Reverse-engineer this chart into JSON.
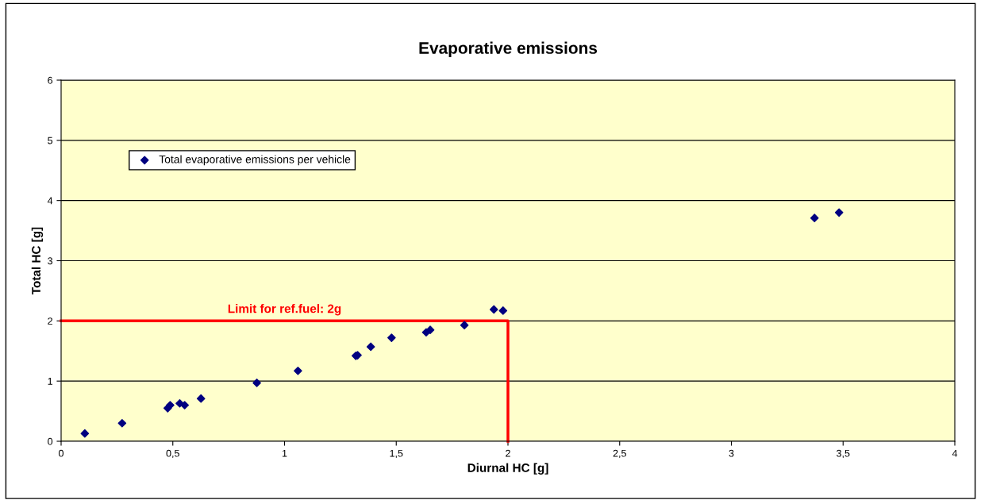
{
  "chart_data": {
    "type": "scatter",
    "title": "Evaporative emissions",
    "xlabel": "Diurnal HC [g]",
    "ylabel": "Total HC [g]",
    "xlim": [
      0,
      4
    ],
    "ylim": [
      0,
      6
    ],
    "xticks": [
      0,
      {
        "value": 0.5,
        "label": "0,5"
      },
      1,
      {
        "value": 1.5,
        "label": "1,5"
      },
      2,
      {
        "value": 2.5,
        "label": "2,5"
      },
      3,
      {
        "value": 3.5,
        "label": "3,5"
      },
      4
    ],
    "yticks": [
      0,
      1,
      2,
      3,
      4,
      5,
      6
    ],
    "grid": "y",
    "legend": "top left",
    "marker": "diamond",
    "series": [
      {
        "name": "Total evaporative emissions per vehicle",
        "color": "#000080",
        "x": [
          0.106,
          0.273,
          0.477,
          0.488,
          0.531,
          0.553,
          0.626,
          0.876,
          1.06,
          1.319,
          1.327,
          1.386,
          1.479,
          1.634,
          1.652,
          1.805,
          1.937,
          1.978,
          3.372,
          3.482
        ],
        "values": [
          0.13,
          0.3,
          0.55,
          0.6,
          0.63,
          0.6,
          0.71,
          0.97,
          1.17,
          1.42,
          1.43,
          1.57,
          1.72,
          1.81,
          1.85,
          1.93,
          2.19,
          2.17,
          3.71,
          3.8
        ]
      },
      {
        "type": "line",
        "color": "#ff0000",
        "marker": "none",
        "x": [
          0,
          2,
          2
        ],
        "values": [
          2,
          2,
          0
        ]
      }
    ],
    "annotations": [
      {
        "text": "Limit for ref.fuel: 2g",
        "x": 1,
        "y": 2
      }
    ]
  }
}
